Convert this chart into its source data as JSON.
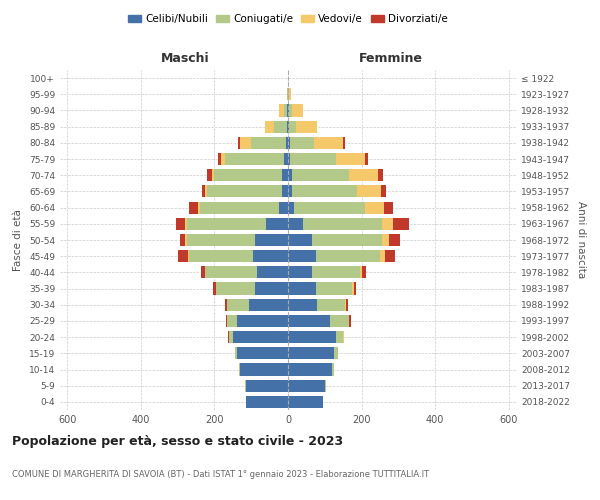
{
  "age_groups": [
    "0-4",
    "5-9",
    "10-14",
    "15-19",
    "20-24",
    "25-29",
    "30-34",
    "35-39",
    "40-44",
    "45-49",
    "50-54",
    "55-59",
    "60-64",
    "65-69",
    "70-74",
    "75-79",
    "80-84",
    "85-89",
    "90-94",
    "95-99",
    "100+"
  ],
  "birth_years": [
    "2018-2022",
    "2013-2017",
    "2008-2012",
    "2003-2007",
    "1998-2002",
    "1993-1997",
    "1988-1992",
    "1983-1987",
    "1978-1982",
    "1973-1977",
    "1968-1972",
    "1963-1967",
    "1958-1962",
    "1953-1957",
    "1948-1952",
    "1943-1947",
    "1938-1942",
    "1933-1937",
    "1928-1932",
    "1923-1927",
    "≤ 1922"
  ],
  "males": {
    "celibi": [
      115,
      115,
      130,
      140,
      150,
      140,
      105,
      90,
      85,
      95,
      90,
      60,
      25,
      15,
      15,
      10,
      5,
      3,
      2,
      0,
      0
    ],
    "coniugati": [
      0,
      1,
      2,
      5,
      10,
      25,
      60,
      105,
      140,
      175,
      185,
      215,
      215,
      205,
      185,
      160,
      95,
      35,
      8,
      2,
      0
    ],
    "vedovi": [
      0,
      0,
      0,
      0,
      1,
      2,
      2,
      2,
      2,
      3,
      5,
      5,
      5,
      5,
      8,
      12,
      30,
      25,
      15,
      2,
      0
    ],
    "divorziati": [
      0,
      0,
      0,
      0,
      2,
      2,
      5,
      8,
      10,
      25,
      15,
      25,
      25,
      10,
      12,
      8,
      5,
      0,
      0,
      0,
      0
    ]
  },
  "females": {
    "nubili": [
      95,
      100,
      120,
      125,
      130,
      115,
      80,
      75,
      65,
      75,
      65,
      40,
      15,
      12,
      10,
      5,
      5,
      3,
      2,
      0,
      0
    ],
    "coniugate": [
      0,
      2,
      5,
      10,
      20,
      50,
      75,
      100,
      130,
      175,
      190,
      215,
      195,
      175,
      155,
      125,
      65,
      20,
      8,
      2,
      0
    ],
    "vedove": [
      0,
      0,
      0,
      0,
      1,
      2,
      3,
      5,
      5,
      15,
      20,
      30,
      50,
      65,
      80,
      80,
      80,
      55,
      30,
      5,
      1
    ],
    "divorziate": [
      0,
      0,
      0,
      0,
      2,
      3,
      5,
      5,
      12,
      25,
      30,
      45,
      25,
      15,
      12,
      8,
      5,
      2,
      2,
      0,
      0
    ]
  },
  "colors": {
    "celibi": "#4472a8",
    "coniugati": "#b2c98a",
    "vedovi": "#f5c96a",
    "divorziati": "#c0392b"
  },
  "legend_labels": [
    "Celibi/Nubili",
    "Coniugati/e",
    "Vedovi/e",
    "Divorziati/e"
  ],
  "title": "Popolazione per età, sesso e stato civile - 2023",
  "subtitle": "COMUNE DI MARGHERITA DI SAVOIA (BT) - Dati ISTAT 1° gennaio 2023 - Elaborazione TUTTITALIA.IT",
  "label_maschi": "Maschi",
  "label_femmine": "Femmine",
  "ylabel_left": "Fasce di età",
  "ylabel_right": "Anni di nascita",
  "xlim": 620,
  "bg_color": "#ffffff",
  "grid_color": "#cccccc"
}
